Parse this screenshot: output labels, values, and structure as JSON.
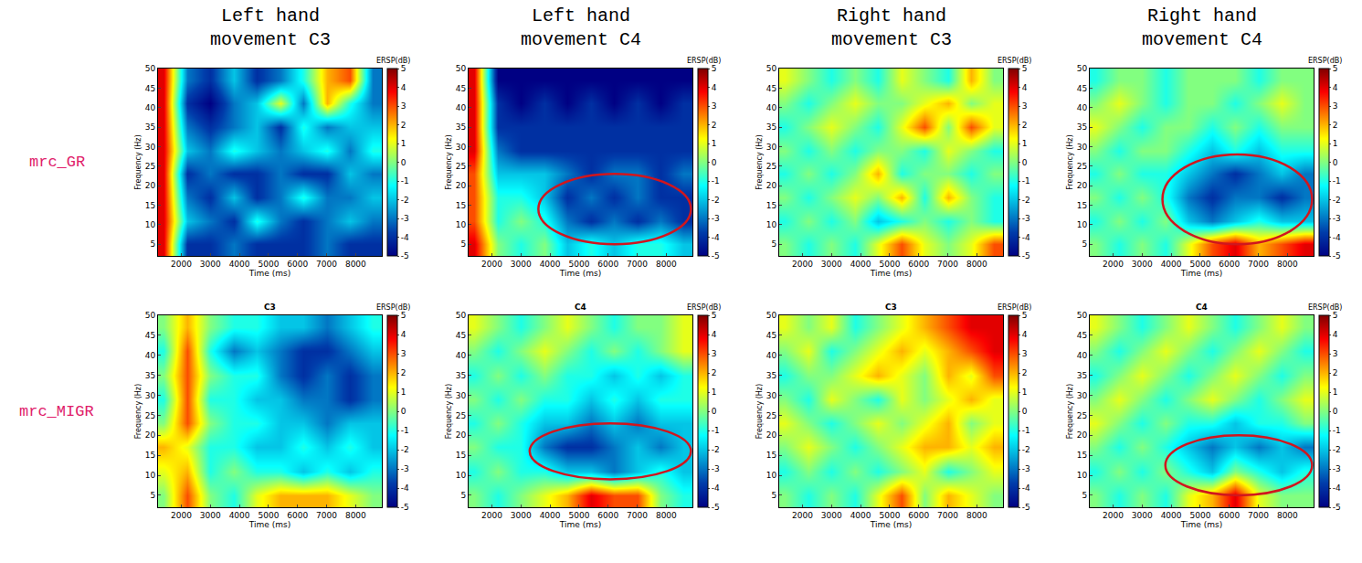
{
  "row_labels": [
    "mrc_GR",
    "mrc_MIGR"
  ],
  "chart_data": [
    {
      "type": "heatmap",
      "title": "Left hand movement C3",
      "x_label": "Time (ms)",
      "y_label": "Frequency (Hz)",
      "color": "Jet",
      "xlim": [
        1200,
        8900
      ],
      "ylim": [
        2,
        50
      ],
      "xticks": [
        2000,
        3000,
        4000,
        5000,
        6000,
        7000,
        8000
      ],
      "yticks": [
        5,
        10,
        15,
        20,
        25,
        30,
        35,
        40,
        45,
        50
      ],
      "colorbar": {
        "title": "ERSP(dB)",
        "range": [
          -5,
          5
        ],
        "ticks": [
          -5,
          -4,
          -3,
          -2,
          -1,
          0,
          1,
          2,
          3,
          4,
          5
        ]
      },
      "x": [
        1400,
        2200,
        3000,
        3800,
        4600,
        5400,
        6200,
        7000,
        7800,
        8600
      ],
      "y": [
        5,
        11,
        17,
        23,
        29,
        35,
        41,
        47
      ],
      "z": [
        [
          4,
          -4,
          -4,
          -3,
          -4,
          -4,
          -4,
          -3,
          -4,
          -4
        ],
        [
          4,
          -2,
          -3,
          -4,
          -1,
          -3,
          -4,
          -3,
          -2,
          -3
        ],
        [
          4,
          -3,
          -4,
          -2,
          -4,
          -3,
          -1,
          -3,
          -3,
          -2
        ],
        [
          4,
          -4,
          -3,
          -4,
          -4,
          -3,
          -4,
          -4,
          -2,
          -3
        ],
        [
          4,
          -2,
          -3,
          -1,
          -2,
          -3,
          -2,
          -1,
          -3,
          -1
        ],
        [
          4,
          -3,
          -4,
          -3,
          -2,
          -4,
          -1,
          -3,
          -2,
          -2
        ],
        [
          4,
          -4,
          -5,
          -3,
          -2,
          1,
          -3,
          2,
          -1,
          -3
        ],
        [
          4,
          -3,
          -4,
          -2,
          -4,
          -3,
          -1,
          2,
          3,
          -3
        ]
      ]
    },
    {
      "type": "heatmap",
      "title": "Left hand movement C4",
      "x_label": "Time (ms)",
      "y_label": "Frequency (Hz)",
      "color": "Jet",
      "xlim": [
        1200,
        8900
      ],
      "ylim": [
        2,
        50
      ],
      "xticks": [
        2000,
        3000,
        4000,
        5000,
        6000,
        7000,
        8000
      ],
      "yticks": [
        5,
        10,
        15,
        20,
        25,
        30,
        35,
        40,
        45,
        50
      ],
      "colorbar": {
        "title": "ERSP(dB)",
        "range": [
          -5,
          5
        ],
        "ticks": [
          -5,
          -4,
          -3,
          -2,
          -1,
          0,
          1,
          2,
          3,
          4,
          5
        ]
      },
      "x": [
        1400,
        2200,
        3000,
        3800,
        4600,
        5400,
        6200,
        7000,
        7800,
        8600
      ],
      "y": [
        5,
        11,
        17,
        23,
        29,
        35,
        41,
        47
      ],
      "z": [
        [
          4,
          0,
          -1,
          0,
          -2,
          -1,
          -2,
          -1,
          -1,
          -2
        ],
        [
          3,
          -1,
          0,
          -1,
          -3,
          -4,
          -3,
          -4,
          -3,
          -4
        ],
        [
          3,
          -1,
          -1,
          -2,
          -4,
          -3,
          -4,
          -3,
          -4,
          -4
        ],
        [
          3,
          -2,
          -2,
          -2,
          -3,
          -4,
          -3,
          -3,
          -4,
          -3
        ],
        [
          4,
          -3,
          -4,
          -4,
          -4,
          -4,
          -4,
          -4,
          -4,
          -4
        ],
        [
          4,
          -4,
          -4,
          -4,
          -4,
          -4,
          -4,
          -4,
          -4,
          -4
        ],
        [
          4,
          -4,
          -5,
          -4,
          -5,
          -4,
          -5,
          -4,
          -5,
          -4
        ],
        [
          4,
          -5,
          -5,
          -5,
          -5,
          -5,
          -5,
          -5,
          -5,
          -5
        ]
      ],
      "highlight": {
        "x": [
          3600,
          8850
        ],
        "y": [
          5,
          23
        ]
      }
    },
    {
      "type": "heatmap",
      "title": "Right hand movement C3",
      "x_label": "Time (ms)",
      "y_label": "Frequency (Hz)",
      "color": "Jet",
      "xlim": [
        1200,
        8900
      ],
      "ylim": [
        2,
        50
      ],
      "xticks": [
        2000,
        3000,
        4000,
        5000,
        6000,
        7000,
        8000
      ],
      "yticks": [
        5,
        10,
        15,
        20,
        25,
        30,
        35,
        40,
        45,
        50
      ],
      "colorbar": {
        "title": "ERSP(dB)",
        "range": [
          -5,
          5
        ],
        "ticks": [
          -5,
          -4,
          -3,
          -2,
          -1,
          0,
          1,
          2,
          3,
          4,
          5
        ]
      },
      "x": [
        1400,
        2200,
        3000,
        3800,
        4600,
        5400,
        6200,
        7000,
        7800,
        8600
      ],
      "y": [
        5,
        11,
        17,
        23,
        29,
        35,
        41,
        47
      ],
      "z": [
        [
          0,
          -1,
          0,
          -1,
          1,
          3,
          1,
          0,
          1,
          3
        ],
        [
          -1,
          0,
          -1,
          0,
          -2,
          -1,
          0,
          -1,
          0,
          -1
        ],
        [
          0,
          -1,
          0,
          1,
          0,
          2,
          -1,
          2,
          0,
          -1
        ],
        [
          -1,
          0,
          -1,
          0,
          2,
          -1,
          0,
          0,
          -1,
          0
        ],
        [
          0,
          -1,
          0,
          -1,
          0,
          0,
          -1,
          1,
          0,
          -1
        ],
        [
          -1,
          0,
          1,
          0,
          -1,
          1,
          3,
          0,
          3,
          1
        ],
        [
          0,
          -1,
          0,
          1,
          0,
          0,
          1,
          2,
          0,
          1
        ],
        [
          1,
          0,
          -1,
          0,
          -1,
          1,
          0,
          -1,
          2,
          0
        ]
      ]
    },
    {
      "type": "heatmap",
      "title": "Right hand movement C4",
      "x_label": "Time (ms)",
      "y_label": "Frequency (Hz)",
      "color": "Jet",
      "xlim": [
        1200,
        8900
      ],
      "ylim": [
        2,
        50
      ],
      "xticks": [
        2000,
        3000,
        4000,
        5000,
        6000,
        7000,
        8000
      ],
      "yticks": [
        5,
        10,
        15,
        20,
        25,
        30,
        35,
        40,
        45,
        50
      ],
      "colorbar": {
        "title": "ERSP(dB)",
        "range": [
          -5,
          5
        ],
        "ticks": [
          -5,
          -4,
          -3,
          -2,
          -1,
          0,
          1,
          2,
          3,
          4,
          5
        ]
      },
      "x": [
        1400,
        2200,
        3000,
        3800,
        4600,
        5400,
        6200,
        7000,
        7800,
        8600
      ],
      "y": [
        5,
        11,
        17,
        23,
        29,
        35,
        41,
        47
      ],
      "z": [
        [
          0,
          -1,
          0,
          -1,
          1,
          3,
          4,
          2,
          3,
          4
        ],
        [
          -1,
          0,
          -1,
          0,
          -2,
          -3,
          -2,
          -1,
          -2,
          -2
        ],
        [
          0,
          -1,
          0,
          -1,
          -3,
          -4,
          -3,
          -3,
          -4,
          -3
        ],
        [
          -1,
          0,
          -1,
          -1,
          -2,
          -3,
          -4,
          -3,
          -2,
          -3
        ],
        [
          0,
          -1,
          0,
          0,
          -1,
          -2,
          -1,
          -2,
          -1,
          -1
        ],
        [
          1,
          0,
          -1,
          0,
          0,
          -1,
          0,
          -1,
          0,
          0
        ],
        [
          0,
          1,
          0,
          -1,
          0,
          0,
          -1,
          0,
          1,
          0
        ],
        [
          -1,
          0,
          0,
          -1,
          0,
          0,
          0,
          -1,
          0,
          0
        ]
      ],
      "highlight": {
        "x": [
          3700,
          8850
        ],
        "y": [
          5,
          28
        ]
      }
    },
    {
      "type": "heatmap",
      "title": "C3",
      "x_label": "Time (ms)",
      "y_label": "Frequency (Hz)",
      "color": "Jet",
      "xlim": [
        1200,
        8900
      ],
      "ylim": [
        2,
        50
      ],
      "xticks": [
        2000,
        3000,
        4000,
        5000,
        6000,
        7000,
        8000
      ],
      "yticks": [
        5,
        10,
        15,
        20,
        25,
        30,
        35,
        40,
        45,
        50
      ],
      "colorbar": {
        "title": "ERSP(dB)",
        "range": [
          -5,
          5
        ],
        "ticks": [
          -5,
          -4,
          -3,
          -2,
          -1,
          0,
          1,
          2,
          3,
          4,
          5
        ]
      },
      "x": [
        1400,
        2200,
        3000,
        3800,
        4600,
        5400,
        6200,
        7000,
        7800,
        8600
      ],
      "y": [
        5,
        11,
        17,
        23,
        29,
        35,
        41,
        47
      ],
      "z": [
        [
          0,
          3,
          0,
          -1,
          1,
          2,
          2,
          2,
          1,
          0
        ],
        [
          1,
          2,
          -1,
          0,
          -1,
          -1,
          -2,
          -1,
          -2,
          -1
        ],
        [
          2,
          1,
          -1,
          -1,
          -2,
          -2,
          -1,
          -2,
          -1,
          -2
        ],
        [
          0,
          3,
          0,
          -1,
          -1,
          -2,
          -2,
          -3,
          -2,
          -2
        ],
        [
          -1,
          3,
          -1,
          -1,
          -2,
          -2,
          -3,
          -3,
          -4,
          -3
        ],
        [
          0,
          3,
          0,
          -1,
          -1,
          -3,
          -4,
          -3,
          -4,
          -3
        ],
        [
          -1,
          3,
          -1,
          -3,
          -2,
          -3,
          -4,
          -4,
          -3,
          -2
        ],
        [
          0,
          2,
          0,
          -1,
          -1,
          -2,
          -2,
          -3,
          -2,
          -1
        ]
      ]
    },
    {
      "type": "heatmap",
      "title": "C4",
      "x_label": "Time (ms)",
      "y_label": "Frequency (Hz)",
      "color": "Jet",
      "xlim": [
        1200,
        8900
      ],
      "ylim": [
        2,
        50
      ],
      "xticks": [
        2000,
        3000,
        4000,
        5000,
        6000,
        7000,
        8000
      ],
      "yticks": [
        5,
        10,
        15,
        20,
        25,
        30,
        35,
        40,
        45,
        50
      ],
      "colorbar": {
        "title": "ERSP(dB)",
        "range": [
          -5,
          5
        ],
        "ticks": [
          -5,
          -4,
          -3,
          -2,
          -1,
          0,
          1,
          2,
          3,
          4,
          5
        ]
      },
      "x": [
        1400,
        2200,
        3000,
        3800,
        4600,
        5400,
        6200,
        7000,
        7800,
        8600
      ],
      "y": [
        5,
        11,
        17,
        23,
        29,
        35,
        41,
        47
      ],
      "z": [
        [
          0,
          -1,
          0,
          1,
          2,
          4,
          3,
          3,
          0,
          -1
        ],
        [
          -1,
          0,
          -1,
          -1,
          -2,
          -2,
          -3,
          -2,
          -1,
          -2
        ],
        [
          0,
          -1,
          -1,
          -3,
          -4,
          -4,
          -3,
          -2,
          -3,
          -2
        ],
        [
          -1,
          0,
          -1,
          -2,
          -2,
          -3,
          -2,
          -3,
          -2,
          -2
        ],
        [
          0,
          -1,
          0,
          -1,
          -1,
          -2,
          -1,
          -2,
          -1,
          -1
        ],
        [
          -1,
          0,
          -1,
          0,
          -1,
          -1,
          -2,
          -1,
          -2,
          -1
        ],
        [
          0,
          -1,
          0,
          1,
          0,
          -1,
          0,
          -1,
          0,
          1
        ],
        [
          1,
          0,
          -1,
          0,
          1,
          0,
          -1,
          0,
          0,
          1
        ]
      ],
      "highlight": {
        "x": [
          3300,
          8850
        ],
        "y": [
          9,
          23
        ]
      }
    },
    {
      "type": "heatmap",
      "title": "C3",
      "x_label": "Time (ms)",
      "y_label": "Frequency (Hz)",
      "color": "Jet",
      "xlim": [
        1200,
        8900
      ],
      "ylim": [
        2,
        50
      ],
      "xticks": [
        2000,
        3000,
        4000,
        5000,
        6000,
        7000,
        8000
      ],
      "yticks": [
        5,
        10,
        15,
        20,
        25,
        30,
        35,
        40,
        45,
        50
      ],
      "colorbar": {
        "title": "ERSP(dB)",
        "range": [
          -5,
          5
        ],
        "ticks": [
          -5,
          -4,
          -3,
          -2,
          -1,
          0,
          1,
          2,
          3,
          4,
          5
        ]
      },
      "x": [
        1400,
        2200,
        3000,
        3800,
        4600,
        5400,
        6200,
        7000,
        7800,
        8600
      ],
      "y": [
        5,
        11,
        17,
        23,
        29,
        35,
        41,
        47
      ],
      "z": [
        [
          0,
          -1,
          0,
          -1,
          1,
          3,
          0,
          2,
          1,
          0
        ],
        [
          -1,
          0,
          -1,
          0,
          -1,
          0,
          1,
          -1,
          0,
          1
        ],
        [
          0,
          1,
          0,
          -1,
          0,
          1,
          2,
          2,
          1,
          2
        ],
        [
          1,
          0,
          -1,
          0,
          1,
          0,
          1,
          2,
          0,
          1
        ],
        [
          0,
          -1,
          1,
          0,
          -1,
          1,
          0,
          1,
          2,
          1
        ],
        [
          -1,
          0,
          0,
          1,
          2,
          1,
          0,
          2,
          1,
          3
        ],
        [
          0,
          1,
          -1,
          0,
          1,
          2,
          1,
          2,
          3,
          4
        ],
        [
          1,
          0,
          1,
          -1,
          0,
          1,
          2,
          3,
          4,
          4
        ]
      ]
    },
    {
      "type": "heatmap",
      "title": "C4",
      "x_label": "Time (ms)",
      "y_label": "Frequency (Hz)",
      "color": "Jet",
      "xlim": [
        1200,
        8900
      ],
      "ylim": [
        2,
        50
      ],
      "xticks": [
        2000,
        3000,
        4000,
        5000,
        6000,
        7000,
        8000
      ],
      "yticks": [
        5,
        10,
        15,
        20,
        25,
        30,
        35,
        40,
        45,
        50
      ],
      "colorbar": {
        "title": "ERSP(dB)",
        "range": [
          -5,
          5
        ],
        "ticks": [
          -5,
          -4,
          -3,
          -2,
          -1,
          0,
          1,
          2,
          3,
          4,
          5
        ]
      },
      "x": [
        1400,
        2200,
        3000,
        3800,
        4600,
        5400,
        6200,
        7000,
        7800,
        8600
      ],
      "y": [
        5,
        11,
        17,
        23,
        29,
        35,
        41,
        47
      ],
      "z": [
        [
          0,
          -1,
          0,
          -1,
          1,
          2,
          4,
          1,
          0,
          0
        ],
        [
          -1,
          0,
          -1,
          0,
          -1,
          -2,
          0,
          -1,
          -2,
          -1
        ],
        [
          0,
          -1,
          0,
          -1,
          -2,
          -3,
          -2,
          -3,
          -2,
          -3
        ],
        [
          1,
          0,
          -1,
          0,
          -1,
          -1,
          -2,
          -1,
          -1,
          0
        ],
        [
          0,
          1,
          0,
          -1,
          0,
          1,
          0,
          -1,
          0,
          1
        ],
        [
          -1,
          0,
          1,
          0,
          -1,
          0,
          1,
          0,
          -1,
          0
        ],
        [
          0,
          -1,
          0,
          1,
          0,
          -1,
          0,
          1,
          0,
          -1
        ],
        [
          1,
          0,
          -1,
          0,
          1,
          0,
          -1,
          0,
          1,
          0
        ]
      ],
      "highlight": {
        "x": [
          3800,
          8850
        ],
        "y": [
          5,
          20
        ]
      }
    }
  ]
}
